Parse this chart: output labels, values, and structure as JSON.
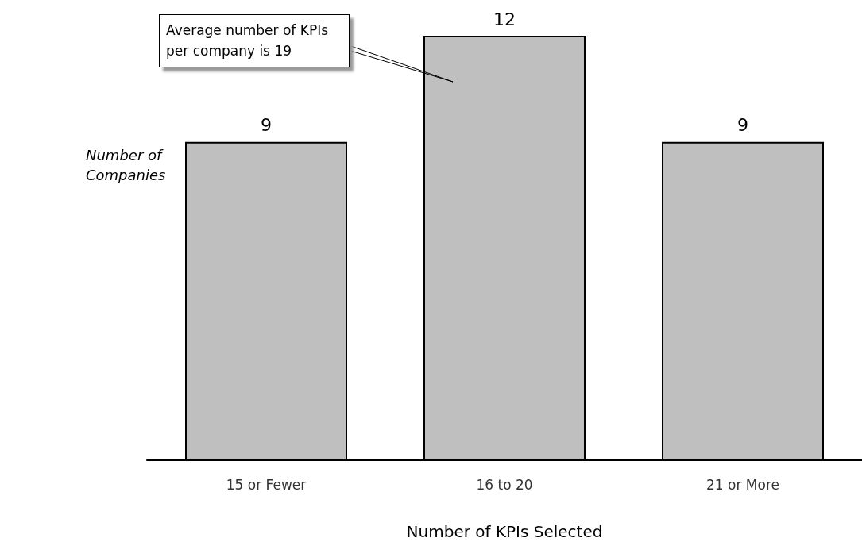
{
  "chart_data": {
    "type": "bar",
    "xlabel": "Number of KPIs Selected",
    "ylabel": "Number of\nCompanies",
    "categories": [
      "15 or Fewer",
      "16 to 20",
      "21 or More"
    ],
    "values": [
      9,
      12,
      9
    ],
    "color": "#bfbfbf",
    "data_labels": true,
    "annotations": [
      "Average number of KPIs per company is 19"
    ]
  }
}
